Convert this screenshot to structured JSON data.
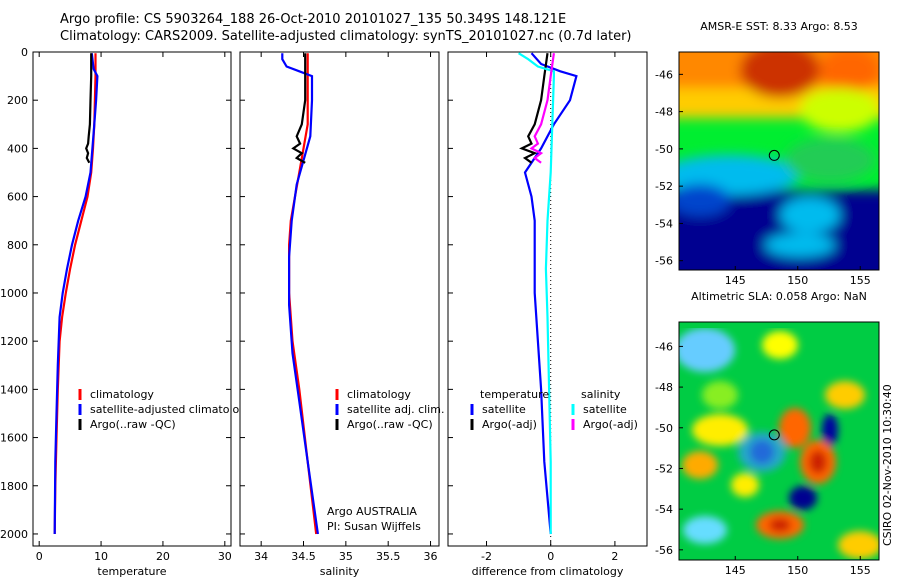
{
  "header": {
    "line1": "Argo profile: CS 5903264_188 26-Oct-2010 20101027_135 50.349S 148.121E",
    "line2": "Climatology: CARS2009. Satellite-adjusted climatology: synTS_20101027.nc (0.7d later)"
  },
  "credit": {
    "argo": "Argo AUSTRALIA",
    "pi": "PI: Susan Wijffels",
    "stamp": "CSIRO 02-Nov-2010 10:30:40"
  },
  "colors": {
    "climatology": "#ff0000",
    "satellite": "#0000ff",
    "argo": "#000000",
    "sat_salinity": "#00ffff",
    "argo_salinity": "#ff00ff"
  },
  "chart_data": [
    {
      "type": "line",
      "xlabel": "temperature",
      "ylabel": "",
      "xlim": [
        -1,
        31
      ],
      "ylim": [
        2050,
        0
      ],
      "xticks": [
        0,
        10,
        20,
        30
      ],
      "yticks": [
        0,
        200,
        400,
        600,
        800,
        1000,
        1200,
        1400,
        1600,
        1800,
        2000
      ],
      "legend": [
        "climatology",
        "satellite-adjusted climatology",
        "Argo(..raw -QC)"
      ],
      "series": [
        {
          "name": "climatology",
          "color": "#ff0000",
          "x": [
            9.1,
            9.1,
            9.0,
            8.9,
            8.7,
            8.4,
            7.8,
            6.8,
            5.8,
            5.0,
            4.3,
            3.7,
            3.3,
            3.0,
            2.8,
            2.6,
            2.5
          ],
          "y": [
            5,
            100,
            200,
            300,
            400,
            500,
            600,
            700,
            800,
            900,
            1000,
            1100,
            1200,
            1400,
            1600,
            1800,
            2000
          ]
        },
        {
          "name": "satellite-adjusted climatology",
          "color": "#0000ff",
          "x": [
            8.5,
            8.8,
            9.4,
            9.2,
            8.9,
            8.6,
            8.3,
            7.5,
            6.3,
            5.3,
            4.5,
            3.8,
            3.3,
            3.0,
            2.8,
            2.6,
            2.5
          ],
          "y": [
            5,
            70,
            100,
            200,
            300,
            400,
            500,
            600,
            700,
            800,
            900,
            1000,
            1100,
            1300,
            1500,
            1700,
            2000
          ]
        },
        {
          "name": "Argo(..raw -QC)",
          "color": "#000000",
          "x": [
            8.4,
            8.4,
            8.3,
            8.2,
            8.0,
            7.9,
            7.6,
            7.9,
            7.7,
            8.0,
            8.1
          ],
          "y": [
            5,
            100,
            200,
            300,
            350,
            380,
            400,
            420,
            440,
            455,
            460
          ]
        }
      ]
    },
    {
      "type": "line",
      "xlabel": "salinity",
      "ylabel": "",
      "xlim": [
        33.75,
        36.1
      ],
      "ylim": [
        2050,
        0
      ],
      "xticks": [
        34,
        34.5,
        35,
        35.5,
        36
      ],
      "yticks": [],
      "legend": [
        "climatology",
        "satellite adj. clim.",
        "Argo(..raw -QC)"
      ],
      "series": [
        {
          "name": "climatology",
          "color": "#ff0000",
          "x": [
            34.55,
            34.55,
            34.55,
            34.55,
            34.5,
            34.45,
            34.4,
            34.35,
            34.33,
            34.33,
            34.37,
            34.45,
            34.55,
            34.65
          ],
          "y": [
            5,
            100,
            200,
            300,
            400,
            500,
            600,
            700,
            800,
            1000,
            1200,
            1400,
            1700,
            2000
          ]
        },
        {
          "name": "satellite adj. clim.",
          "color": "#0000ff",
          "x": [
            34.25,
            34.25,
            34.3,
            34.45,
            34.6,
            34.6,
            34.58,
            34.5,
            34.42,
            34.36,
            34.33,
            34.33,
            34.37,
            34.45,
            34.55,
            34.67
          ],
          "y": [
            5,
            30,
            60,
            80,
            100,
            200,
            350,
            450,
            550,
            700,
            850,
            1050,
            1250,
            1450,
            1700,
            2000
          ]
        },
        {
          "name": "Argo(..raw -QC)",
          "color": "#000000",
          "x": [
            34.52,
            34.52,
            34.52,
            34.48,
            34.42,
            34.46,
            34.38,
            34.48,
            34.42,
            34.52
          ],
          "y": [
            5,
            100,
            200,
            300,
            350,
            380,
            400,
            420,
            440,
            460
          ]
        }
      ]
    },
    {
      "type": "line",
      "xlabel": "difference from climatology",
      "ylabel": "",
      "xlim": [
        -3.2,
        3.0
      ],
      "ylim": [
        2050,
        0
      ],
      "xticks": [
        -2,
        0,
        2
      ],
      "yticks": [],
      "legend": [
        "temperature",
        "satellite",
        "Argo(-adj)",
        "salinity",
        "satellite",
        "Argo(-adj)"
      ],
      "series": [
        {
          "name": "temperature satellite",
          "color": "#0000ff",
          "x": [
            -0.6,
            -0.3,
            0.3,
            0.8,
            0.6,
            0.1,
            -0.3,
            -0.8,
            -0.6,
            -0.5,
            -0.5,
            -0.5,
            -0.4,
            -0.3,
            -0.2,
            0.0
          ],
          "y": [
            5,
            50,
            80,
            100,
            200,
            300,
            400,
            500,
            600,
            700,
            800,
            1000,
            1200,
            1400,
            1700,
            2000
          ]
        },
        {
          "name": "temperature Argo(-adj)",
          "color": "#000000",
          "x": [
            -0.1,
            -0.2,
            -0.3,
            -0.5,
            -0.7,
            -0.6,
            -0.9,
            -0.5,
            -0.8,
            -0.6
          ],
          "y": [
            5,
            100,
            200,
            300,
            350,
            380,
            400,
            420,
            440,
            460
          ]
        },
        {
          "name": "salinity satellite",
          "color": "#00ffff",
          "x": [
            -1.0,
            -0.7,
            -0.4,
            0.1,
            0.1,
            0.05,
            0.0,
            -0.1,
            -0.15,
            -0.1,
            -0.05,
            0.0,
            0.0
          ],
          "y": [
            5,
            30,
            60,
            80,
            100,
            300,
            500,
            700,
            900,
            1100,
            1400,
            1700,
            2000
          ]
        },
        {
          "name": "salinity Argo(-adj)",
          "color": "#ff00ff",
          "x": [
            0.1,
            0.0,
            -0.1,
            -0.3,
            -0.5,
            -0.4,
            -0.6,
            -0.3,
            -0.5,
            -0.3
          ],
          "y": [
            5,
            100,
            200,
            300,
            350,
            380,
            400,
            420,
            440,
            460
          ]
        }
      ]
    },
    {
      "type": "heatmap",
      "title": "AMSR-E SST: 8.33 Argo: 8.53",
      "xlim": [
        140.5,
        156.5
      ],
      "ylim": [
        -56.5,
        -44.8
      ],
      "xticks": [
        145,
        150,
        155
      ],
      "yticks": [
        -46,
        -48,
        -50,
        -52,
        -54,
        -56
      ],
      "marker": {
        "x": 148.121,
        "y": -50.349
      }
    },
    {
      "type": "heatmap",
      "title": "Altimetric SLA: 0.058 Argo: NaN",
      "xlim": [
        140.5,
        156.5
      ],
      "ylim": [
        -56.5,
        -44.8
      ],
      "xticks": [
        145,
        150,
        155
      ],
      "yticks": [
        -46,
        -48,
        -50,
        -52,
        -54,
        -56
      ],
      "marker": {
        "x": 148.121,
        "y": -50.349
      }
    }
  ]
}
